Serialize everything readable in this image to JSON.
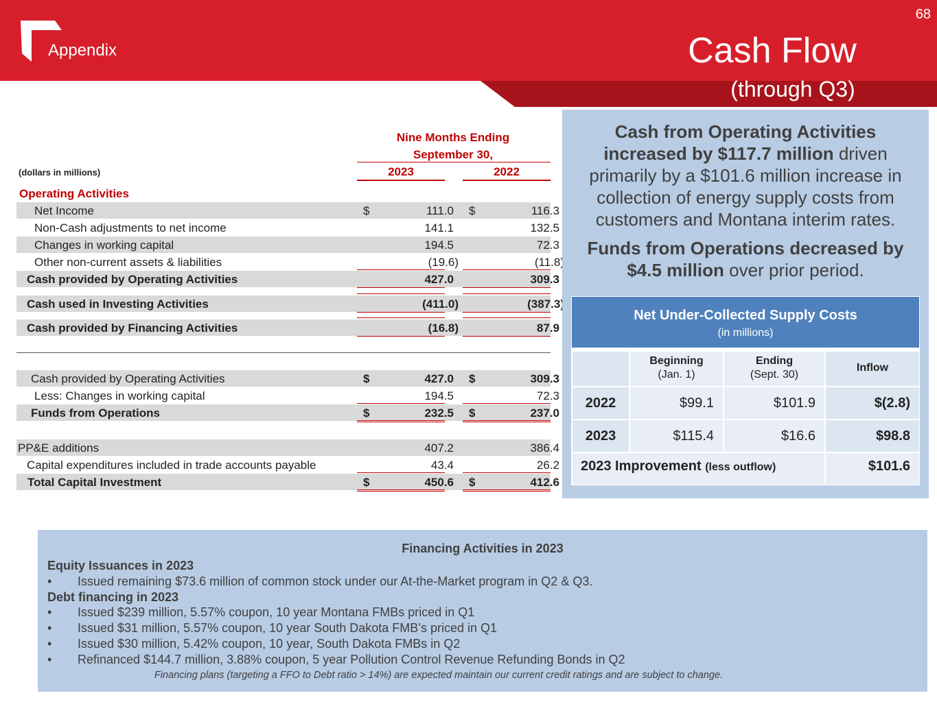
{
  "header": {
    "section": "Appendix",
    "page_number": "68",
    "title": "Cash Flow",
    "subtitle": "(through Q3)",
    "colors": {
      "brand_red": "#d71f2b",
      "dark_red": "#a8141c",
      "panel_blue": "#b8cce4",
      "header_blue": "#4f81bd"
    }
  },
  "table": {
    "period_line1": "Nine Months Ending",
    "period_line2": "September 30,",
    "year1": "2023",
    "year2": "2022",
    "units": "(dollars in millions)",
    "operating_heading": "Operating Activities",
    "rows": [
      {
        "label": "Net Income",
        "dollar": "$",
        "v2023": "111.0",
        "v2022": "116.3"
      },
      {
        "label": "Non-Cash adjustments to net income",
        "v2023": "141.1",
        "v2022": "132.5"
      },
      {
        "label": "Changes in working capital",
        "v2023": "194.5",
        "v2022": "72.3"
      },
      {
        "label": "Other non-current assets & liabilities",
        "v2023": "(19.6)",
        "v2022": "(11.8)"
      },
      {
        "label": "Cash provided by Operating Activities",
        "v2023": "427.0",
        "v2022": "309.3"
      },
      {
        "label": "Cash used in Investing Activities",
        "v2023": "(411.0)",
        "v2022": "(387.3)"
      },
      {
        "label": "Cash provided by Financing Activities",
        "v2023": "(16.8)",
        "v2022": "87.9"
      },
      {
        "label": "Cash provided by Operating Activities",
        "dollar": "$",
        "v2023": "427.0",
        "v2022": "309.3"
      },
      {
        "label": "Less: Changes in working capital",
        "v2023": "194.5",
        "v2022": "72.3"
      },
      {
        "label": "Funds from Operations",
        "dollar": "$",
        "v2023": "232.5",
        "v2022": "237.0"
      },
      {
        "label": "PP&E additions",
        "v2023": "407.2",
        "v2022": "386.4"
      },
      {
        "label": "Capital expenditures included in trade accounts payable",
        "v2023": "43.4",
        "v2022": "26.2"
      },
      {
        "label": "Total Capital Investment",
        "dollar": "$",
        "v2023": "450.6",
        "v2022": "412.6"
      }
    ]
  },
  "panel": {
    "p1_bold": "Cash from Operating Activities increased by $117.7 million",
    "p1_rest": " driven primarily by a $101.6 million increase in collection of energy supply costs from customers and Montana interim rates.",
    "p2_bold": "Funds from Operations decreased by $4.5 million",
    "p2_rest": " over prior period.",
    "nuc_title": "Net Under-Collected Supply Costs",
    "nuc_sub": "(in millions)",
    "col_beginning": "Beginning",
    "col_beginning_sub": "(Jan. 1)",
    "col_ending": "Ending",
    "col_ending_sub": "(Sept. 30)",
    "col_inflow": "Inflow",
    "r2022_year": "2022",
    "r2022_begin": "$99.1",
    "r2022_end": "$101.9",
    "r2022_inflow": "$(2.8)",
    "r2023_year": "2023",
    "r2023_begin": "$115.4",
    "r2023_end": "$16.6",
    "r2023_inflow": "$98.8",
    "improve_label": "2023 Improvement",
    "improve_sub": "(less outflow)",
    "improve_value": "$101.6"
  },
  "financing": {
    "title": "Financing Activities in 2023",
    "equity_heading": "Equity Issuances in 2023",
    "bullet": "•",
    "equity_items": [
      "Issued remaining $73.6 million of common stock under our At-the-Market program in Q2 & Q3."
    ],
    "debt_heading": "Debt financing in 2023",
    "debt_items": [
      "Issued $239 million, 5.57% coupon, 10 year Montana FMBs priced in Q1",
      "Issued $31 million, 5.57% coupon, 10 year South Dakota FMB’s priced in Q1",
      "Issued $30 million, 5.42% coupon, 10 year, South Dakota FMBs in Q2",
      "Refinanced $144.7 million, 3.88% coupon, 5 year Pollution Control Revenue Refunding Bonds in Q2"
    ],
    "footnote": "Financing plans (targeting a FFO to Debt ratio > 14%) are expected maintain our current credit ratings and are subject to change."
  }
}
